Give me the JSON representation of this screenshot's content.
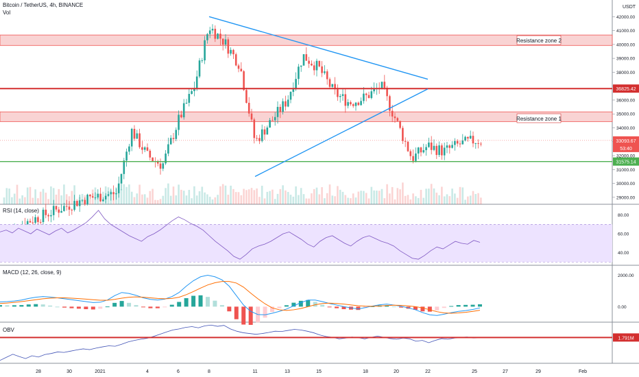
{
  "header": {
    "title": "Bitcoin / TetherUS, 4h, BINANCE",
    "volume_label": "Vol",
    "currency": "USDT"
  },
  "indicators": {
    "rsi_label": "RSI (14, close)",
    "macd_label": "MACD (12, 26, close, 9)",
    "obv_label": "OBV"
  },
  "annotations": {
    "zone1_label": "Resistance zone 1",
    "zone2_label": "Resistance zone 2"
  },
  "colors": {
    "up": "#26a69a",
    "down": "#ef5350",
    "trendline": "#2196f3",
    "resistance_line": "#d32f2f",
    "support_line": "#4caf50",
    "zone_fill": "#f8c8c8",
    "rsi_band": "#ede3ff",
    "macd_line": "#2196f3",
    "signal_line": "#ff6d00",
    "obv_line": "#3f51b5"
  },
  "chart_data": [
    {
      "type": "candlestick",
      "title": "Bitcoin / TetherUS, 4h, BINANCE",
      "x_ticks": [
        "28",
        "30",
        "2021",
        "4",
        "6",
        "8",
        "11",
        "13",
        "15",
        "18",
        "20",
        "22",
        "25",
        "27",
        "29",
        "Feb"
      ],
      "y_ticks": [
        29000,
        30000,
        31000,
        32000,
        33000,
        34000,
        35000,
        36000,
        37000,
        38000,
        39000,
        40000,
        41000,
        42000
      ],
      "ylim": [
        28500,
        43200
      ],
      "price_labels": [
        {
          "label": "36825.42",
          "value": 36825.42,
          "kind": "line"
        },
        {
          "label": "33093.67",
          "value": 33093.67,
          "kind": "current"
        },
        {
          "label": "53:40",
          "value": 32550,
          "kind": "timer"
        },
        {
          "label": "31575.14",
          "value": 31575.14,
          "kind": "line"
        }
      ],
      "resistance_zones": [
        {
          "name": "Resistance zone 1",
          "low": 34450,
          "high": 35150
        },
        {
          "name": "Resistance zone 2",
          "low": 39930,
          "high": 40680
        }
      ],
      "horizontal_lines": [
        {
          "value": 36825.42,
          "role": "resistance"
        },
        {
          "value": 31575.14,
          "role": "support"
        }
      ],
      "trendlines": [
        {
          "from": {
            "x": "Jan 8",
            "y": 42000
          },
          "to": {
            "x": "Jan 21",
            "y": 37500
          }
        },
        {
          "from": {
            "x": "Jan 11",
            "y": 30500
          },
          "to": {
            "x": "Jan 21",
            "y": 36800
          }
        }
      ],
      "close_path": [
        {
          "x": "Dec 27",
          "y": 26500
        },
        {
          "x": "Dec 31",
          "y": 28900
        },
        {
          "x": "Jan 2",
          "y": 29300
        },
        {
          "x": "Jan 3",
          "y": 33800
        },
        {
          "x": "Jan 4",
          "y": 32000
        },
        {
          "x": "Jan 5",
          "y": 31300
        },
        {
          "x": "Jan 6",
          "y": 34500
        },
        {
          "x": "Jan 7",
          "y": 36900
        },
        {
          "x": "Jan 8",
          "y": 41300
        },
        {
          "x": "Jan 9",
          "y": 40200
        },
        {
          "x": "Jan 10",
          "y": 38500
        },
        {
          "x": "Jan 11",
          "y": 33000
        },
        {
          "x": "Jan 12",
          "y": 34500
        },
        {
          "x": "Jan 13",
          "y": 36000
        },
        {
          "x": "Jan 14",
          "y": 39200
        },
        {
          "x": "Jan 15",
          "y": 38300
        },
        {
          "x": "Jan 16",
          "y": 36500
        },
        {
          "x": "Jan 17",
          "y": 35800
        },
        {
          "x": "Jan 18",
          "y": 36200
        },
        {
          "x": "Jan 19",
          "y": 37000
        },
        {
          "x": "Jan 20",
          "y": 34500
        },
        {
          "x": "Jan 21",
          "y": 31800
        },
        {
          "x": "Jan 22",
          "y": 32700
        },
        {
          "x": "Jan 23",
          "y": 32300
        },
        {
          "x": "Jan 24",
          "y": 32800
        },
        {
          "x": "Jan 25",
          "y": 33093.67
        }
      ]
    },
    {
      "type": "line",
      "name": "RSI (14, close)",
      "y_ticks": [
        40,
        60,
        80
      ],
      "band": [
        30,
        70
      ],
      "ylim": [
        28,
        90
      ],
      "values": [
        62,
        64,
        61,
        66,
        63,
        60,
        65,
        62,
        59,
        63,
        66,
        61,
        64,
        68,
        72,
        78,
        85,
        76,
        70,
        66,
        62,
        58,
        55,
        52,
        57,
        60,
        64,
        69,
        74,
        78,
        75,
        71,
        68,
        64,
        58,
        52,
        47,
        42,
        36,
        33,
        38,
        44,
        47,
        49,
        52,
        56,
        60,
        62,
        58,
        54,
        49,
        46,
        52,
        56,
        58,
        54,
        50,
        47,
        52,
        56,
        58,
        55,
        52,
        50,
        47,
        42,
        38,
        34,
        33,
        37,
        42,
        46,
        44,
        48,
        52,
        50,
        49,
        53,
        51
      ]
    },
    {
      "type": "line",
      "name": "MACD (12, 26, close, 9)",
      "y_ticks": [
        0,
        2000
      ],
      "ylim": [
        -900,
        2500
      ],
      "macd": [
        300,
        320,
        360,
        420,
        520,
        600,
        640,
        610,
        560,
        500,
        440,
        380,
        320,
        260,
        280,
        420,
        700,
        900,
        840,
        720,
        560,
        460,
        420,
        480,
        640,
        900,
        1300,
        1650,
        1900,
        2000,
        1900,
        1700,
        1300,
        700,
        100,
        -300,
        -500,
        -520,
        -420,
        -300,
        -150,
        50,
        250,
        420,
        420,
        320,
        200,
        100,
        0,
        -80,
        -150,
        -60,
        40,
        120,
        160,
        100,
        20,
        -80,
        -200,
        -380,
        -520,
        -560,
        -480,
        -380,
        -300,
        -250,
        -180,
        -80
      ],
      "signal": [
        200,
        230,
        270,
        320,
        380,
        440,
        500,
        540,
        560,
        560,
        540,
        510,
        480,
        440,
        410,
        410,
        460,
        540,
        600,
        620,
        600,
        560,
        520,
        500,
        520,
        600,
        760,
        960,
        1180,
        1380,
        1520,
        1600,
        1600,
        1500,
        1240,
        860,
        500,
        180,
        -80,
        -200,
        -240,
        -200,
        -120,
        0,
        120,
        200,
        220,
        200,
        160,
        110,
        60,
        30,
        20,
        40,
        70,
        90,
        80,
        50,
        0,
        -80,
        -200,
        -320,
        -400,
        -420,
        -400,
        -360,
        -300,
        -230
      ]
    },
    {
      "type": "line",
      "name": "OBV",
      "price_labels": [
        {
          "label": "1.791M",
          "value": 1.791
        }
      ],
      "values": [
        0.3,
        0.5,
        0.7,
        0.55,
        0.42,
        0.6,
        0.52,
        0.68,
        0.75,
        0.85,
        0.82,
        0.9,
        0.98,
        1.05,
        1.0,
        1.1,
        1.18,
        1.25,
        1.22,
        1.35,
        1.5,
        1.6,
        1.68,
        1.74,
        1.86,
        2.0,
        2.15,
        2.28,
        2.35,
        2.45,
        2.5,
        2.42,
        2.55,
        2.6,
        2.52,
        2.58,
        2.35,
        2.2,
        2.1,
        2.05,
        2.0,
        2.05,
        2.12,
        2.2,
        2.18,
        2.25,
        2.32,
        2.28,
        2.2,
        2.1,
        1.95,
        1.85,
        1.8,
        1.7,
        1.75,
        1.82,
        1.78,
        1.7,
        1.8,
        1.88,
        1.8,
        1.72,
        1.68,
        1.75,
        1.7,
        1.55,
        1.6,
        1.45,
        1.6,
        1.72,
        1.68,
        1.75,
        1.8,
        1.82,
        1.76,
        1.79
      ]
    }
  ]
}
